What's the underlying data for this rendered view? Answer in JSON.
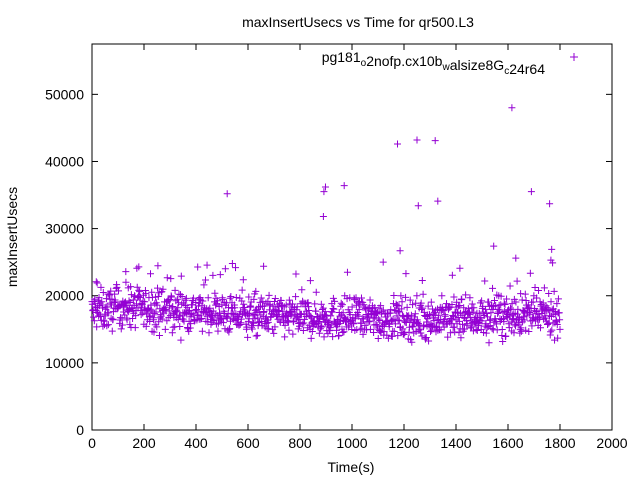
{
  "chart_data": {
    "type": "scatter",
    "title": "maxInsertUsecs vs Time for qr500.L3",
    "xlabel": "Time(s)",
    "ylabel": "maxInsertUsecs",
    "xlim": [
      0,
      2000
    ],
    "ylim": [
      0,
      57500
    ],
    "x_ticks": [
      0,
      200,
      400,
      600,
      800,
      1000,
      1200,
      1400,
      1600,
      1800,
      2000
    ],
    "y_ticks": [
      0,
      10000,
      20000,
      30000,
      40000,
      50000
    ],
    "x_tick_labels": [
      "0",
      "200",
      "400",
      "600",
      "800",
      "1000",
      "1200",
      "1400",
      "1600",
      "1800",
      "2000"
    ],
    "y_tick_labels": [
      "0",
      "10000",
      "20000",
      "30000",
      "40000",
      "50000"
    ],
    "grid": false,
    "legend_position": "top-right",
    "series": [
      {
        "name": "pg181_o2nofp.cx10b_walsize8G_c24r64",
        "legend": {
          "parts": [
            {
              "text": "pg181",
              "sub": false
            },
            {
              "text": "o",
              "sub": true
            },
            {
              "text": "2nofp.cx10b",
              "sub": false
            },
            {
              "text": "w",
              "sub": true
            },
            {
              "text": "alsize8G",
              "sub": false
            },
            {
              "text": "c",
              "sub": true
            },
            {
              "text": "24r64",
              "sub": false
            }
          ]
        },
        "marker": "+",
        "color": "#9400d3",
        "band_summary": {
          "x_range": [
            0,
            1800
          ],
          "typical_y": 17000,
          "typical_spread": [
            13000,
            22500
          ]
        },
        "outliers": [
          {
            "x": 520,
            "y": 35200
          },
          {
            "x": 540,
            "y": 24800
          },
          {
            "x": 660,
            "y": 24400
          },
          {
            "x": 890,
            "y": 31800
          },
          {
            "x": 892,
            "y": 35500
          },
          {
            "x": 898,
            "y": 36200
          },
          {
            "x": 970,
            "y": 36400
          },
          {
            "x": 1175,
            "y": 42600
          },
          {
            "x": 1185,
            "y": 26700
          },
          {
            "x": 1250,
            "y": 43200
          },
          {
            "x": 1255,
            "y": 33400
          },
          {
            "x": 1320,
            "y": 43100
          },
          {
            "x": 1330,
            "y": 34100
          },
          {
            "x": 1415,
            "y": 24100
          },
          {
            "x": 1545,
            "y": 27400
          },
          {
            "x": 1615,
            "y": 48000
          },
          {
            "x": 1630,
            "y": 25600
          },
          {
            "x": 1690,
            "y": 35500
          },
          {
            "x": 1760,
            "y": 33700
          },
          {
            "x": 1768,
            "y": 26900
          },
          {
            "x": 1765,
            "y": 25300
          },
          {
            "x": 1120,
            "y": 25000
          },
          {
            "x": 130,
            "y": 23600
          },
          {
            "x": 180,
            "y": 24300
          },
          {
            "x": 20,
            "y": 21900
          }
        ]
      }
    ]
  }
}
